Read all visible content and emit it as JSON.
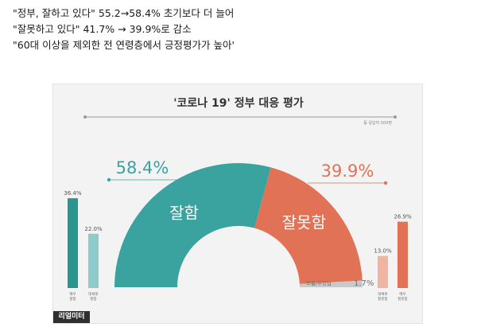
{
  "headlines": [
    "\"정부, 잘하고 있다\" 55.2→58.4% 초기보다 더 늘어",
    "\"잘못하고 있다\" 41.7% → 39.9%로 감소",
    "\"60대 이상을 제외한 전 연령층에서 긍정평가가 높아'"
  ],
  "brand": "리얼미터",
  "chart_data": [
    {
      "type": "pie",
      "title": "'코로나 19' 정부 대응 평가",
      "note": "동 응답자 500명",
      "slices": [
        {
          "label": "잘함",
          "value": 58.4,
          "display": "58.4%",
          "color": "#3aa3a0"
        },
        {
          "label": "잘못함",
          "value": 39.9,
          "display": "39.9%",
          "color": "#e27255"
        },
        {
          "label": "모름/무응답",
          "value": 1.7,
          "display": "1.7%",
          "color": "#c9c9c9"
        }
      ]
    },
    {
      "type": "bar",
      "categories": [
        "매우 잘함",
        "대체로 잘함"
      ],
      "values": [
        36.4,
        22.0
      ],
      "labels": [
        "36.4%",
        "22.0%"
      ],
      "colors": [
        "#2a9491",
        "#8fcbcb"
      ]
    },
    {
      "type": "bar",
      "categories": [
        "대체로 잘못함",
        "매우 잘못함"
      ],
      "values": [
        13.0,
        26.9
      ],
      "labels": [
        "13.0%",
        "26.9%"
      ],
      "colors": [
        "#f0b5a2",
        "#e27255"
      ]
    }
  ]
}
